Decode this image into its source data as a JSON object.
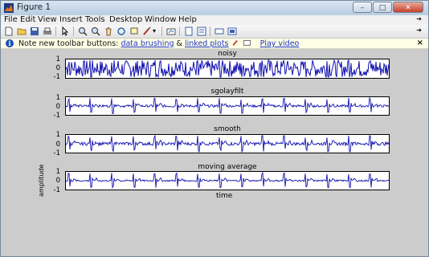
{
  "window": {
    "title": "Figure 1",
    "controls": {
      "minimize": "–",
      "maximize": "□",
      "close": "✕"
    }
  },
  "menu": [
    "File",
    "Edit",
    "View",
    "Insert",
    "Tools",
    "Desktop",
    "Window",
    "Help"
  ],
  "toolbar_icons": [
    "new-figure-icon",
    "open-file-icon",
    "save-icon",
    "print-icon",
    "pointer-icon",
    "zoom-in-icon",
    "zoom-out-icon",
    "pan-icon",
    "rotate-3d-icon",
    "data-cursor-icon",
    "brush-icon",
    "link-icon",
    "colorbar-icon",
    "legend-icon",
    "hide-plot-tools-icon",
    "show-plot-tools-icon"
  ],
  "infobar": {
    "text": "Note new toolbar buttons:",
    "link1": "data brushing",
    "amp": "&",
    "link2": "linked plots",
    "link3": "Play video",
    "close": "×"
  },
  "plots": [
    {
      "title": "noisy",
      "yticks": [
        "1",
        "0",
        "-1"
      ]
    },
    {
      "title": "sgolayfilt",
      "yticks": [
        "1",
        "0",
        "-1"
      ]
    },
    {
      "title": "smooth",
      "yticks": [
        "1",
        "0",
        "-1"
      ]
    },
    {
      "title": "moving average",
      "yticks": [
        "1",
        "0",
        "-1"
      ],
      "xlabel": "time",
      "ylabel": "amplitude"
    }
  ],
  "colors": {
    "signal": "#1010b0",
    "figure_bg": "#cccccc"
  }
}
